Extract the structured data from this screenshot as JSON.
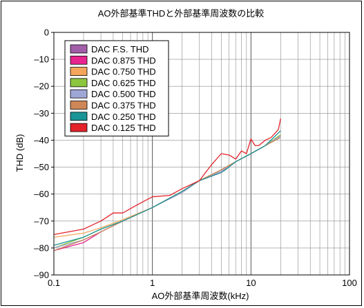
{
  "chart_data": {
    "type": "line",
    "title": "AO外部基準THDと外部基準周波数の比較",
    "xlabel": "AO外部基準周波数(kHz)",
    "ylabel": "THD (dB)",
    "x_scale": "log",
    "xlim": [
      0.1,
      100
    ],
    "ylim": [
      -90,
      0
    ],
    "x_ticks": [
      {
        "value": 0.1,
        "label": "0.1"
      },
      {
        "value": 1,
        "label": "1"
      },
      {
        "value": 10,
        "label": "10"
      },
      {
        "value": 100,
        "label": "100"
      }
    ],
    "y_ticks": [
      {
        "value": 0,
        "label": "0"
      },
      {
        "value": -10,
        "label": "–10"
      },
      {
        "value": -20,
        "label": "–20"
      },
      {
        "value": -30,
        "label": "–30"
      },
      {
        "value": -40,
        "label": "–40"
      },
      {
        "value": -50,
        "label": "–50"
      },
      {
        "value": -60,
        "label": "–60"
      },
      {
        "value": -70,
        "label": "–70"
      },
      {
        "value": -80,
        "label": "–80"
      },
      {
        "value": -90,
        "label": "–90"
      }
    ],
    "grid": true,
    "legend_position": "top-left",
    "series": [
      {
        "name": "DAC F.S. THD",
        "color": "#a25ea8",
        "points": [
          [
            0.1,
            -81
          ],
          [
            0.2,
            -77
          ],
          [
            0.3,
            -74
          ],
          [
            0.5,
            -70
          ],
          [
            1,
            -65
          ],
          [
            2,
            -59
          ],
          [
            3,
            -55
          ],
          [
            5,
            -51
          ],
          [
            7,
            -48
          ],
          [
            10,
            -45
          ],
          [
            14,
            -42
          ],
          [
            20,
            -38.5
          ]
        ]
      },
      {
        "name": "DAC 0.875 THD",
        "color": "#e8248f",
        "points": [
          [
            0.1,
            -81
          ],
          [
            0.2,
            -78
          ],
          [
            0.3,
            -74
          ],
          [
            0.5,
            -70
          ],
          [
            1,
            -65
          ],
          [
            2,
            -59
          ],
          [
            3,
            -55
          ],
          [
            5,
            -52
          ],
          [
            7,
            -48
          ],
          [
            10,
            -45
          ],
          [
            14,
            -42
          ],
          [
            20,
            -38
          ]
        ]
      },
      {
        "name": "DAC 0.750 THD",
        "color": "#f5a65a",
        "points": [
          [
            0.1,
            -76
          ],
          [
            0.2,
            -74.5
          ],
          [
            0.3,
            -72.5
          ],
          [
            0.5,
            -69.5
          ],
          [
            1,
            -65
          ],
          [
            2,
            -59
          ],
          [
            3,
            -55
          ],
          [
            5,
            -51
          ],
          [
            7,
            -48
          ],
          [
            10,
            -45
          ],
          [
            14,
            -42
          ],
          [
            20,
            -38
          ]
        ]
      },
      {
        "name": "DAC 0.625 THD",
        "color": "#8cc63e",
        "points": [
          [
            0.1,
            -80
          ],
          [
            0.2,
            -76
          ],
          [
            0.3,
            -73
          ],
          [
            0.5,
            -70
          ],
          [
            1,
            -65
          ],
          [
            2,
            -59
          ],
          [
            3,
            -55
          ],
          [
            5,
            -51
          ],
          [
            7,
            -48
          ],
          [
            10,
            -45
          ],
          [
            14,
            -42
          ],
          [
            20,
            -38
          ]
        ]
      },
      {
        "name": "DAC 0.500 THD",
        "color": "#9ea6d6",
        "points": [
          [
            0.1,
            -80
          ],
          [
            0.2,
            -77
          ],
          [
            0.3,
            -74
          ],
          [
            0.5,
            -70
          ],
          [
            1,
            -65
          ],
          [
            2,
            -59.5
          ],
          [
            3,
            -55
          ],
          [
            5,
            -51.5
          ],
          [
            7,
            -48
          ],
          [
            10,
            -45
          ],
          [
            14,
            -42
          ],
          [
            20,
            -38.5
          ]
        ]
      },
      {
        "name": "DAC 0.375 THD",
        "color": "#cf8757",
        "points": [
          [
            0.1,
            -81
          ],
          [
            0.2,
            -77
          ],
          [
            0.3,
            -74
          ],
          [
            0.5,
            -70
          ],
          [
            1,
            -65
          ],
          [
            2,
            -59
          ],
          [
            3,
            -55
          ],
          [
            5,
            -51
          ],
          [
            7,
            -48
          ],
          [
            10,
            -45
          ],
          [
            14,
            -42
          ],
          [
            20,
            -39
          ]
        ]
      },
      {
        "name": "DAC 0.250 THD",
        "color": "#1a9496",
        "points": [
          [
            0.1,
            -79
          ],
          [
            0.2,
            -76
          ],
          [
            0.3,
            -73
          ],
          [
            0.5,
            -70
          ],
          [
            1,
            -65
          ],
          [
            2,
            -59
          ],
          [
            3,
            -55
          ],
          [
            5,
            -52
          ],
          [
            5.5,
            -51
          ],
          [
            7,
            -48
          ],
          [
            10,
            -45
          ],
          [
            14,
            -42
          ],
          [
            20,
            -36.5
          ]
        ]
      },
      {
        "name": "DAC 0.125 THD",
        "color": "#e3222a",
        "points": [
          [
            0.1,
            -75
          ],
          [
            0.2,
            -73
          ],
          [
            0.3,
            -70
          ],
          [
            0.4,
            -67
          ],
          [
            0.5,
            -67
          ],
          [
            0.7,
            -64
          ],
          [
            1,
            -61
          ],
          [
            1.5,
            -60.5
          ],
          [
            2,
            -58
          ],
          [
            3,
            -55
          ],
          [
            4,
            -49
          ],
          [
            5,
            -45
          ],
          [
            6,
            -45.5
          ],
          [
            7,
            -47
          ],
          [
            8,
            -44
          ],
          [
            9,
            -45
          ],
          [
            10,
            -39.5
          ],
          [
            11,
            -42
          ],
          [
            12,
            -42
          ],
          [
            14,
            -40
          ],
          [
            16,
            -39
          ],
          [
            18,
            -37
          ],
          [
            19,
            -36
          ],
          [
            20,
            -32
          ]
        ]
      }
    ]
  }
}
